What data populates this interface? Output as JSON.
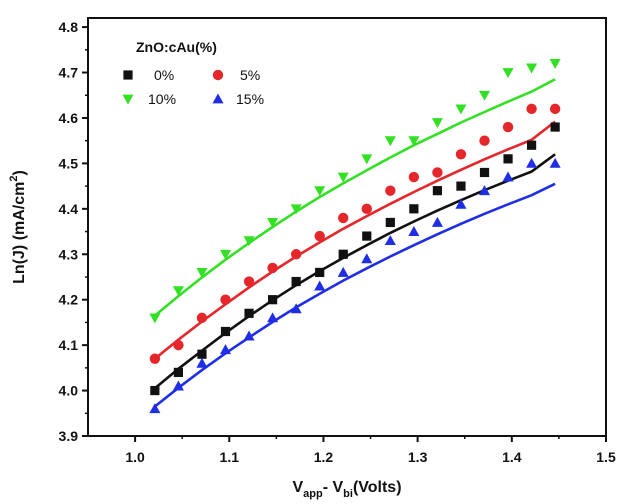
{
  "chart_data": {
    "type": "scatter",
    "title": "",
    "xlabel": {
      "main": "V",
      "sub1": "app",
      "mid": "- V",
      "sub2": "bi",
      "tail": "(Volts)"
    },
    "ylabel": {
      "main": "Ln(J) (mA/cm",
      "sup": "2",
      "tail": ")"
    },
    "xlim": [
      0.95,
      1.5
    ],
    "ylim": [
      3.9,
      4.82
    ],
    "xticks": [
      1.0,
      1.1,
      1.2,
      1.3,
      1.4,
      1.5
    ],
    "xtick_labels": [
      "1.0",
      "1.1",
      "1.2",
      "1.3",
      "1.4",
      "1.5"
    ],
    "yticks": [
      3.9,
      4.0,
      4.1,
      4.2,
      4.3,
      4.4,
      4.5,
      4.6,
      4.7,
      4.8
    ],
    "ytick_labels": [
      "3.9",
      "4.0",
      "4.1",
      "4.2",
      "4.3",
      "4.4",
      "4.5",
      "4.6",
      "4.7",
      "4.8"
    ],
    "grid": false,
    "legend": {
      "title": "ZnO:cAu(%)",
      "placement": "top-left",
      "columns": 2
    },
    "x": [
      1.021,
      1.046,
      1.071,
      1.096,
      1.121,
      1.146,
      1.171,
      1.196,
      1.221,
      1.246,
      1.271,
      1.296,
      1.321,
      1.346,
      1.371,
      1.396,
      1.421,
      1.446
    ],
    "series": [
      {
        "name": "0%",
        "marker": "square",
        "color": "#111111",
        "values": [
          4.0,
          4.04,
          4.08,
          4.13,
          4.17,
          4.2,
          4.24,
          4.26,
          4.3,
          4.34,
          4.37,
          4.4,
          4.44,
          4.45,
          4.48,
          4.51,
          4.54,
          4.58
        ],
        "fit": [
          4.005,
          4.048,
          4.088,
          4.127,
          4.164,
          4.199,
          4.232,
          4.263,
          4.292,
          4.32,
          4.347,
          4.372,
          4.396,
          4.419,
          4.441,
          4.462,
          4.482,
          4.52
        ]
      },
      {
        "name": "5%",
        "marker": "circle",
        "color": "#e5262b",
        "values": [
          4.07,
          4.1,
          4.16,
          4.2,
          4.24,
          4.27,
          4.3,
          4.34,
          4.38,
          4.4,
          4.44,
          4.47,
          4.48,
          4.52,
          4.55,
          4.58,
          4.62,
          4.62
        ],
        "fit": [
          4.07,
          4.112,
          4.152,
          4.19,
          4.227,
          4.262,
          4.295,
          4.326,
          4.356,
          4.384,
          4.411,
          4.437,
          4.462,
          4.486,
          4.509,
          4.531,
          4.552,
          4.592
        ]
      },
      {
        "name": "10%",
        "marker": "triangle-down",
        "color": "#33e024",
        "values": [
          4.16,
          4.22,
          4.26,
          4.3,
          4.33,
          4.37,
          4.4,
          4.44,
          4.47,
          4.51,
          4.55,
          4.55,
          4.59,
          4.62,
          4.65,
          4.7,
          4.71,
          4.72
        ],
        "fit": [
          4.165,
          4.208,
          4.249,
          4.288,
          4.325,
          4.36,
          4.394,
          4.426,
          4.456,
          4.485,
          4.513,
          4.54,
          4.565,
          4.59,
          4.613,
          4.636,
          4.658,
          4.685
        ]
      },
      {
        "name": "15%",
        "marker": "triangle-up",
        "color": "#1f2ee6",
        "values": [
          3.96,
          4.01,
          4.06,
          4.09,
          4.12,
          4.16,
          4.18,
          4.23,
          4.26,
          4.29,
          4.33,
          4.35,
          4.37,
          4.41,
          4.44,
          4.47,
          4.5,
          4.5
        ],
        "fit": [
          3.965,
          4.006,
          4.045,
          4.082,
          4.117,
          4.151,
          4.183,
          4.213,
          4.242,
          4.269,
          4.295,
          4.32,
          4.344,
          4.367,
          4.389,
          4.41,
          4.43,
          4.455
        ]
      }
    ]
  }
}
